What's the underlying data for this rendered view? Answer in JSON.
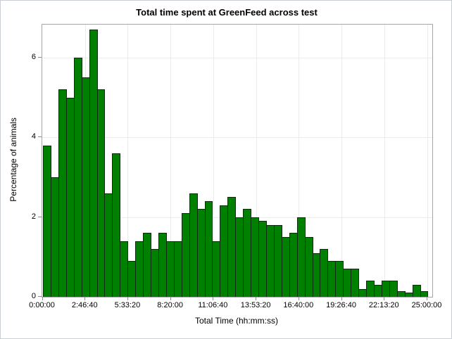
{
  "title": "Total time spent at GreenFeed across test",
  "chart_data": {
    "type": "bar",
    "subtype": "histogram",
    "title": "Total time spent at GreenFeed across test",
    "xlabel": "Total Time (hh:mm:ss)",
    "ylabel": "Percentage of animals",
    "bin_width_seconds": 1800,
    "x_range_seconds": [
      0,
      90000
    ],
    "x_tick_labels": [
      "0:00:00",
      "2:46:40",
      "5:33:20",
      "8:20:00",
      "11:06:40",
      "13:53:20",
      "16:40:00",
      "19:26:40",
      "22:13:20",
      "25:00:00"
    ],
    "x_tick_seconds": [
      0,
      10000,
      20000,
      30000,
      40000,
      50000,
      60000,
      70000,
      80000,
      90000
    ],
    "y_tick_labels": [
      "0",
      "2",
      "4",
      "6"
    ],
    "y_ticks": [
      0,
      2,
      4,
      6
    ],
    "ylim": [
      0,
      6.83
    ],
    "grid": true,
    "legend": "none",
    "bar_color": "#008000",
    "bar_border_color": "#0d2b0d",
    "values": [
      3.8,
      3.0,
      5.2,
      5.0,
      6.0,
      5.5,
      6.7,
      5.2,
      2.6,
      3.6,
      1.4,
      0.9,
      1.4,
      1.6,
      1.2,
      1.6,
      1.4,
      1.4,
      2.1,
      2.6,
      2.2,
      2.4,
      1.4,
      2.3,
      2.5,
      2.0,
      2.2,
      2.0,
      1.9,
      1.8,
      1.8,
      1.5,
      1.6,
      2.0,
      1.5,
      1.1,
      1.2,
      0.9,
      0.9,
      0.7,
      0.7,
      0.2,
      0.4,
      0.3,
      0.4,
      0.4,
      0.15,
      0.1,
      0.3,
      0.15
    ]
  }
}
